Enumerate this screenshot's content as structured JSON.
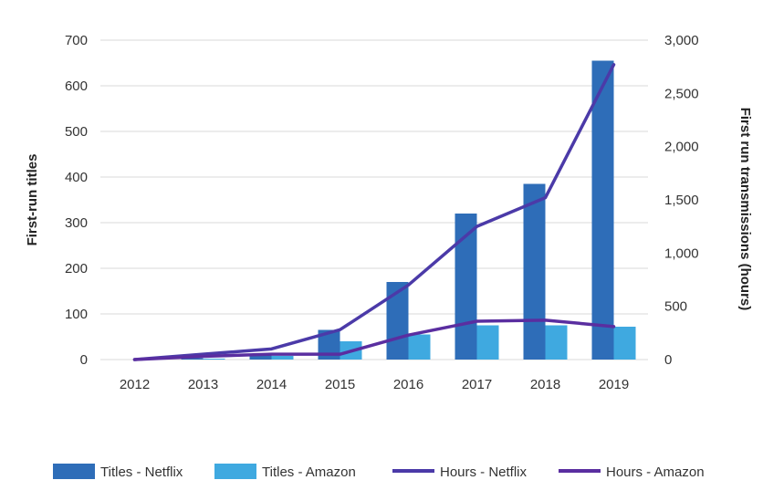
{
  "chart_data": {
    "type": "bar",
    "categories": [
      "2012",
      "2013",
      "2014",
      "2015",
      "2016",
      "2017",
      "2018",
      "2019"
    ],
    "y_left": {
      "label": "First-run titles",
      "range": [
        0,
        700
      ],
      "ticks": [
        0,
        100,
        200,
        300,
        400,
        500,
        600,
        700
      ],
      "tick_labels": [
        "0",
        "100",
        "200",
        "300",
        "400",
        "500",
        "600",
        "700"
      ]
    },
    "y_right": {
      "label": "First run transmissions (hours)",
      "range": [
        0,
        3000
      ],
      "ticks": [
        0,
        500,
        1000,
        1500,
        2000,
        2500,
        3000
      ],
      "tick_labels": [
        "0",
        "500",
        "1,000",
        "1,500",
        "2,000",
        "2,500",
        "3,000"
      ]
    },
    "series": [
      {
        "name": "Titles - Netflix",
        "kind": "bar",
        "axis": "left",
        "color": "#2e6db8",
        "values": [
          0,
          3,
          10,
          65,
          170,
          320,
          385,
          655
        ]
      },
      {
        "name": "Titles - Amazon",
        "kind": "bar",
        "axis": "left",
        "color": "#3fa9e0",
        "values": [
          0,
          2,
          8,
          40,
          55,
          75,
          75,
          72
        ]
      },
      {
        "name": "Hours - Netflix",
        "kind": "line",
        "axis": "right",
        "color": "#4b3aa8",
        "values": [
          0,
          50,
          100,
          280,
          700,
          1250,
          1520,
          2770
        ]
      },
      {
        "name": "Hours - Amazon",
        "kind": "line",
        "axis": "right",
        "color": "#5a2ea0",
        "values": [
          0,
          30,
          50,
          50,
          230,
          360,
          370,
          310
        ]
      }
    ],
    "grid": true,
    "legend_position": "bottom"
  }
}
